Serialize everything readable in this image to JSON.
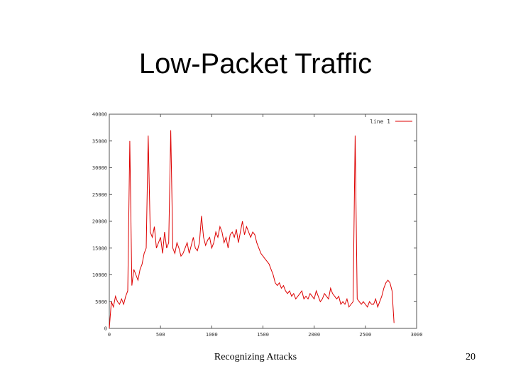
{
  "slide": {
    "title": "Low-Packet Traffic",
    "footer": "Recognizing Attacks",
    "page_number": "20"
  },
  "chart_data": {
    "type": "line",
    "title": "",
    "xlabel": "",
    "ylabel": "",
    "xlim": [
      0,
      3000
    ],
    "ylim": [
      0,
      40000
    ],
    "x_ticks": [
      0,
      500,
      1000,
      1500,
      2000,
      2500,
      3000
    ],
    "y_ticks": [
      0,
      5000,
      10000,
      15000,
      20000,
      25000,
      30000,
      35000,
      40000
    ],
    "x_tick_labels": [
      "0",
      "500",
      "1000",
      "1500",
      "2000",
      "2500",
      "3000"
    ],
    "y_tick_labels": [
      "0",
      "5000",
      "10000",
      "15000",
      "20000",
      "25000",
      "30000",
      "35000",
      "40000"
    ],
    "grid": false,
    "legend_position": "top-right",
    "series_color": "#dd0000",
    "series": [
      {
        "name": "line 1",
        "x": [
          0,
          20,
          40,
          60,
          80,
          100,
          120,
          140,
          160,
          180,
          200,
          220,
          240,
          260,
          280,
          300,
          320,
          340,
          360,
          380,
          400,
          420,
          440,
          460,
          480,
          500,
          520,
          540,
          560,
          580,
          600,
          620,
          640,
          660,
          680,
          700,
          720,
          740,
          760,
          780,
          800,
          820,
          840,
          860,
          880,
          900,
          920,
          940,
          960,
          980,
          1000,
          1020,
          1040,
          1060,
          1080,
          1100,
          1120,
          1140,
          1160,
          1180,
          1200,
          1220,
          1240,
          1260,
          1280,
          1300,
          1320,
          1340,
          1360,
          1380,
          1400,
          1420,
          1440,
          1460,
          1480,
          1500,
          1520,
          1540,
          1560,
          1580,
          1600,
          1620,
          1640,
          1660,
          1680,
          1700,
          1720,
          1740,
          1760,
          1780,
          1800,
          1820,
          1840,
          1860,
          1880,
          1900,
          1920,
          1940,
          1960,
          1980,
          2000,
          2020,
          2040,
          2060,
          2080,
          2100,
          2120,
          2140,
          2160,
          2180,
          2200,
          2220,
          2240,
          2260,
          2280,
          2300,
          2320,
          2340,
          2360,
          2380,
          2400,
          2420,
          2440,
          2460,
          2480,
          2500,
          2520,
          2540,
          2560,
          2580,
          2600,
          2620,
          2640,
          2660,
          2680,
          2700,
          2720,
          2740,
          2760,
          2780
        ],
        "y": [
          0,
          5000,
          4000,
          6000,
          5000,
          4500,
          5500,
          4500,
          6000,
          7000,
          35000,
          8000,
          11000,
          10000,
          9000,
          11000,
          12000,
          14000,
          15000,
          36000,
          18000,
          17000,
          19000,
          15000,
          16000,
          17000,
          14000,
          18000,
          15000,
          16000,
          37000,
          15000,
          14000,
          16000,
          15000,
          13500,
          14000,
          15000,
          16000,
          14000,
          15500,
          17000,
          15000,
          14500,
          16000,
          21000,
          17000,
          15500,
          16500,
          17000,
          15000,
          16000,
          18000,
          17000,
          19000,
          18000,
          16000,
          17000,
          15000,
          17500,
          18000,
          17000,
          18500,
          16000,
          18000,
          20000,
          17500,
          19000,
          18000,
          17000,
          18000,
          17500,
          16000,
          15000,
          14000,
          13500,
          13000,
          12500,
          12000,
          11000,
          10000,
          8500,
          8000,
          8500,
          7500,
          8000,
          7000,
          6500,
          7000,
          6000,
          6500,
          5500,
          6000,
          6500,
          7000,
          5500,
          6000,
          5500,
          6500,
          6000,
          5500,
          7000,
          6000,
          5000,
          5500,
          6500,
          6000,
          5500,
          7500,
          6500,
          6000,
          5500,
          6000,
          4500,
          5000,
          4500,
          5500,
          4000,
          4500,
          5000,
          36000,
          5500,
          5000,
          4500,
          5000,
          4500,
          4000,
          5000,
          4500,
          4500,
          5500,
          4000,
          5000,
          6000,
          7500,
          8500,
          9000,
          8500,
          7000,
          1000
        ]
      }
    ]
  }
}
